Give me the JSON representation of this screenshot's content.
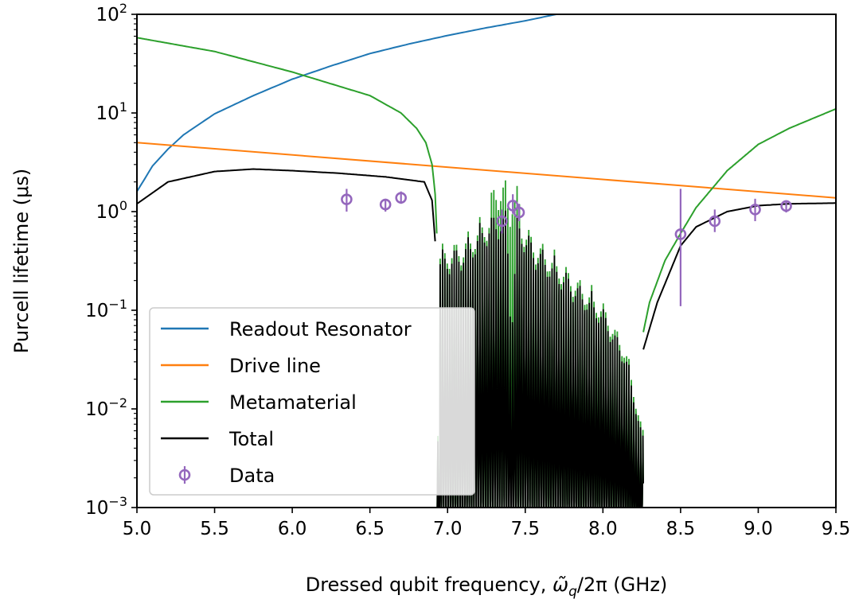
{
  "chart_data": {
    "type": "line",
    "xlabel": "Dressed qubit frequency,",
    "xlabel_symbol": "ω̃",
    "xlabel_subscript": "q",
    "xlabel_suffix": "/2π (GHz)",
    "ylabel": "Purcell lifetime (μs)",
    "xlim": [
      5.0,
      9.5
    ],
    "ylim": [
      0.001,
      100
    ],
    "yscale": "log",
    "x_ticks": [
      "5.0",
      "5.5",
      "6.0",
      "6.5",
      "7.0",
      "7.5",
      "8.0",
      "8.5",
      "9.0",
      "9.5"
    ],
    "y_ticks": [
      {
        "base": "10",
        "exp": "2"
      },
      {
        "base": "10",
        "exp": "1"
      },
      {
        "base": "10",
        "exp": "0"
      },
      {
        "base": "10",
        "exp": "−1"
      },
      {
        "base": "10",
        "exp": "−2"
      },
      {
        "base": "10",
        "exp": "−3"
      }
    ],
    "legend_position": "lower-left",
    "colors": {
      "readout": "#1f77b4",
      "drive": "#ff7f0e",
      "metamaterial": "#2ca02c",
      "total": "#000000",
      "data": "#9467bd"
    },
    "series": [
      {
        "key": "readout",
        "name": "Readout Resonator",
        "x": [
          5.0,
          5.05,
          5.1,
          5.2,
          5.3,
          5.5,
          5.75,
          6.0,
          6.25,
          6.5,
          6.75,
          7.0,
          7.25,
          7.5,
          7.7
        ],
        "y": [
          1.6,
          2.15,
          2.9,
          4.3,
          6.0,
          9.8,
          15.0,
          22.0,
          30.0,
          40.0,
          50.0,
          61.0,
          73.0,
          86.0,
          100.0
        ]
      },
      {
        "key": "drive",
        "name": "Drive line",
        "x": [
          5.0,
          9.5
        ],
        "y": [
          5.0,
          1.38
        ]
      },
      {
        "key": "metamaterial",
        "name": "Metamaterial",
        "x": [
          5.0,
          5.5,
          6.0,
          6.5,
          6.7,
          6.8,
          6.86,
          6.9,
          6.92,
          6.93
        ],
        "y": [
          58.0,
          42.0,
          26.0,
          15.0,
          10.0,
          7.0,
          5.0,
          3.0,
          1.5,
          0.6
        ],
        "x_right": [
          8.26,
          8.3,
          8.4,
          8.5,
          8.6,
          8.8,
          9.0,
          9.2,
          9.5
        ],
        "y_right": [
          0.06,
          0.12,
          0.32,
          0.6,
          1.1,
          2.6,
          4.8,
          7.0,
          11.0
        ]
      },
      {
        "key": "total",
        "name": "Total",
        "x": [
          5.0,
          5.2,
          5.5,
          5.75,
          6.0,
          6.3,
          6.6,
          6.85,
          6.9,
          6.92
        ],
        "y": [
          1.2,
          2.0,
          2.55,
          2.7,
          2.6,
          2.45,
          2.25,
          2.0,
          1.3,
          0.5
        ],
        "x_right": [
          8.26,
          8.35,
          8.5,
          8.6,
          8.8,
          9.0,
          9.2,
          9.5
        ],
        "y_right": [
          0.04,
          0.12,
          0.45,
          0.7,
          1.0,
          1.15,
          1.2,
          1.22
        ]
      }
    ],
    "data_points": {
      "name": "Data",
      "points": [
        {
          "x": 6.35,
          "y": 1.33,
          "ylo": 1.0,
          "yhi": 1.7
        },
        {
          "x": 6.6,
          "y": 1.18,
          "ylo": 1.0,
          "yhi": 1.35
        },
        {
          "x": 6.7,
          "y": 1.38,
          "ylo": 1.2,
          "yhi": 1.6
        },
        {
          "x": 7.35,
          "y": 0.8,
          "ylo": 0.6,
          "yhi": 1.05
        },
        {
          "x": 7.42,
          "y": 1.15,
          "ylo": 0.95,
          "yhi": 1.5
        },
        {
          "x": 7.46,
          "y": 0.98,
          "ylo": 0.8,
          "yhi": 1.2
        },
        {
          "x": 8.5,
          "y": 0.59,
          "ylo": 0.11,
          "yhi": 1.7
        },
        {
          "x": 8.72,
          "y": 0.8,
          "ylo": 0.62,
          "yhi": 1.05
        },
        {
          "x": 8.98,
          "y": 1.05,
          "ylo": 0.8,
          "yhi": 1.35
        },
        {
          "x": 9.18,
          "y": 1.14,
          "ylo": 0.98,
          "yhi": 1.3
        }
      ]
    },
    "oscillation_region": {
      "x_start": 6.93,
      "x_end": 8.26,
      "dip_floor": 0.001,
      "peak_series": [
        {
          "x": 6.95,
          "y": 0.45
        },
        {
          "x": 7.1,
          "y": 0.55
        },
        {
          "x": 7.25,
          "y": 1.0
        },
        {
          "x": 7.32,
          "y": 1.25
        },
        {
          "x": 7.38,
          "y": 1.2
        },
        {
          "x": 7.41,
          "y": 0.08
        },
        {
          "x": 7.45,
          "y": 1.1
        },
        {
          "x": 7.55,
          "y": 0.6
        },
        {
          "x": 7.75,
          "y": 0.3
        },
        {
          "x": 8.0,
          "y": 0.12
        },
        {
          "x": 8.15,
          "y": 0.04
        },
        {
          "x": 8.25,
          "y": 0.006
        }
      ],
      "green_bump": [
        {
          "x": 7.28,
          "y": 2.0
        },
        {
          "x": 7.32,
          "y": 2.7
        },
        {
          "x": 7.37,
          "y": 2.6
        },
        {
          "x": 7.4,
          "y": 1.5
        },
        {
          "x": 7.42,
          "y": 2.2
        },
        {
          "x": 7.47,
          "y": 1.8
        }
      ]
    }
  }
}
